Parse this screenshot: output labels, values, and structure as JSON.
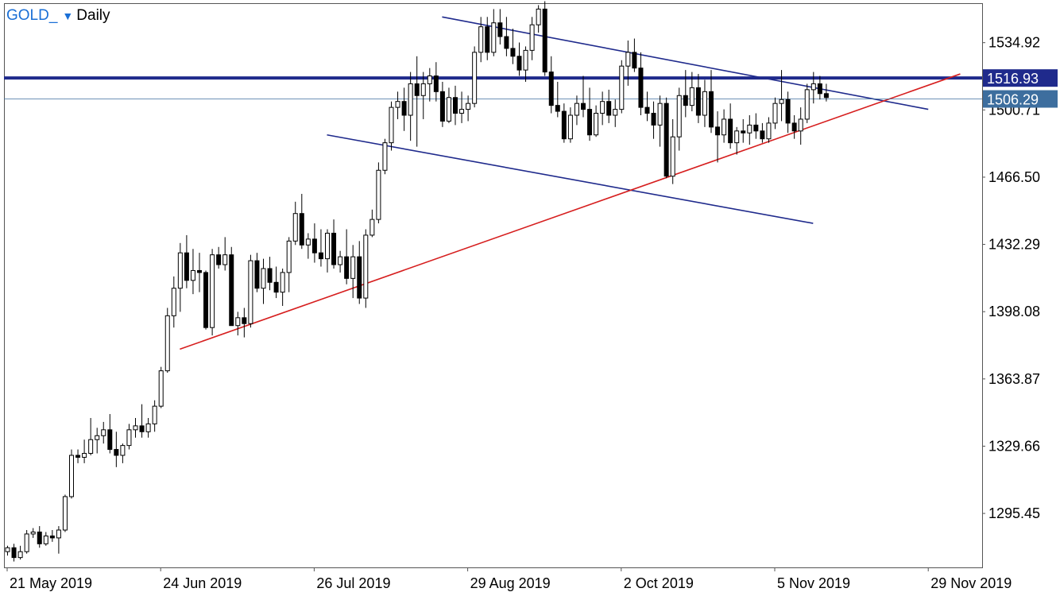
{
  "header": {
    "symbol": "GOLD_",
    "timeframe": "Daily"
  },
  "colors": {
    "accent": "#1a6fd6",
    "resistance": "#1f2a8c",
    "channel": "#1f2a8c",
    "support": "#d61e1e",
    "bid_tag": "#3d6e9e",
    "level_tag": "#1f2a8c"
  },
  "chart_data": {
    "type": "candlestick",
    "title": "",
    "ylim": [
      1268,
      1555
    ],
    "y_ticks": [
      {
        "value": 1534.92,
        "label": "1534.92"
      },
      {
        "value": 1500.71,
        "label": "1500.71"
      },
      {
        "value": 1466.5,
        "label": "1466.50"
      },
      {
        "value": 1432.29,
        "label": "1432.29"
      },
      {
        "value": 1398.08,
        "label": "1398.08"
      },
      {
        "value": 1363.87,
        "label": "1363.87"
      },
      {
        "value": 1329.66,
        "label": "1329.66"
      },
      {
        "value": 1295.45,
        "label": "1295.45"
      }
    ],
    "x_ticks": [
      {
        "index": 0,
        "label": "21 May 2019"
      },
      {
        "index": 24,
        "label": "24 Jun 2019"
      },
      {
        "index": 48,
        "label": "26 Jul 2019"
      },
      {
        "index": 72,
        "label": "29 Aug 2019"
      },
      {
        "index": 96,
        "label": "2 Oct 2019"
      },
      {
        "index": 120,
        "label": "5 Nov 2019"
      },
      {
        "index": 144,
        "label": "29 Nov 2019"
      }
    ],
    "price_tags": [
      {
        "value": 1516.93,
        "label": "1516.93",
        "kind": "level"
      },
      {
        "value": 1506.29,
        "label": "1506.29",
        "kind": "bid"
      }
    ],
    "trendlines": [
      {
        "name": "resistance",
        "x1": -1,
        "y1": 1516.93,
        "x2": 154,
        "y2": 1516.93,
        "width": 4
      },
      {
        "name": "upper-channel",
        "x1": 68,
        "y1": 1548,
        "x2": 144,
        "y2": 1501,
        "width": 1.6
      },
      {
        "name": "lower-channel",
        "x1": 50,
        "y1": 1488,
        "x2": 126,
        "y2": 1443,
        "width": 1.6
      },
      {
        "name": "support",
        "x1": 27,
        "y1": 1379,
        "x2": 149,
        "y2": 1519,
        "width": 1.6
      }
    ],
    "candles": [
      [
        1276,
        1279,
        1274,
        1278
      ],
      [
        1278,
        1280,
        1271,
        1273
      ],
      [
        1273,
        1279,
        1272,
        1276
      ],
      [
        1276,
        1287,
        1275,
        1285
      ],
      [
        1285,
        1288,
        1283,
        1286
      ],
      [
        1286,
        1289,
        1278,
        1280
      ],
      [
        1280,
        1286,
        1279,
        1284
      ],
      [
        1284,
        1287,
        1281,
        1283
      ],
      [
        1283,
        1289,
        1275,
        1287
      ],
      [
        1287,
        1305,
        1286,
        1304
      ],
      [
        1304,
        1328,
        1303,
        1325
      ],
      [
        1325,
        1328,
        1321,
        1324
      ],
      [
        1324,
        1333,
        1321,
        1326
      ],
      [
        1326,
        1344,
        1325,
        1333
      ],
      [
        1333,
        1339,
        1326,
        1335
      ],
      [
        1335,
        1342,
        1331,
        1338
      ],
      [
        1338,
        1346,
        1326,
        1328
      ],
      [
        1328,
        1337,
        1319,
        1325
      ],
      [
        1325,
        1331,
        1321,
        1330
      ],
      [
        1330,
        1341,
        1328,
        1338
      ],
      [
        1338,
        1344,
        1334,
        1340
      ],
      [
        1340,
        1351,
        1334,
        1337
      ],
      [
        1337,
        1344,
        1334,
        1341
      ],
      [
        1341,
        1353,
        1337,
        1350
      ],
      [
        1350,
        1370,
        1349,
        1368
      ],
      [
        1368,
        1400,
        1367,
        1396
      ],
      [
        1396,
        1416,
        1390,
        1410
      ],
      [
        1410,
        1433,
        1398,
        1428
      ],
      [
        1428,
        1437,
        1410,
        1414
      ],
      [
        1414,
        1430,
        1407,
        1419
      ],
      [
        1419,
        1428,
        1408,
        1418
      ],
      [
        1418,
        1419,
        1389,
        1390
      ],
      [
        1390,
        1430,
        1386,
        1427
      ],
      [
        1427,
        1431,
        1420,
        1422
      ],
      [
        1422,
        1436,
        1419,
        1427
      ],
      [
        1427,
        1431,
        1391,
        1391
      ],
      [
        1391,
        1398,
        1386,
        1395
      ],
      [
        1395,
        1400,
        1385,
        1392
      ],
      [
        1392,
        1427,
        1390,
        1424
      ],
      [
        1424,
        1428,
        1408,
        1410
      ],
      [
        1410,
        1425,
        1402,
        1420
      ],
      [
        1420,
        1426,
        1409,
        1413
      ],
      [
        1413,
        1421,
        1405,
        1408
      ],
      [
        1408,
        1420,
        1401,
        1418
      ],
      [
        1418,
        1436,
        1408,
        1434
      ],
      [
        1434,
        1454,
        1432,
        1448
      ],
      [
        1448,
        1458,
        1430,
        1432
      ],
      [
        1432,
        1438,
        1425,
        1435
      ],
      [
        1435,
        1443,
        1423,
        1428
      ],
      [
        1428,
        1440,
        1421,
        1425
      ],
      [
        1425,
        1440,
        1418,
        1438
      ],
      [
        1438,
        1445,
        1420,
        1422
      ],
      [
        1422,
        1429,
        1418,
        1426
      ],
      [
        1426,
        1440,
        1412,
        1415
      ],
      [
        1415,
        1432,
        1405,
        1426
      ],
      [
        1426,
        1434,
        1402,
        1405
      ],
      [
        1405,
        1440,
        1400,
        1437
      ],
      [
        1437,
        1450,
        1436,
        1445
      ],
      [
        1445,
        1474,
        1443,
        1470
      ],
      [
        1470,
        1486,
        1468,
        1484
      ],
      [
        1484,
        1505,
        1480,
        1502
      ],
      [
        1502,
        1510,
        1496,
        1505
      ],
      [
        1505,
        1512,
        1490,
        1498
      ],
      [
        1498,
        1520,
        1485,
        1514
      ],
      [
        1514,
        1528,
        1482,
        1508
      ],
      [
        1508,
        1520,
        1496,
        1514
      ],
      [
        1514,
        1522,
        1505,
        1518
      ],
      [
        1518,
        1525,
        1505,
        1510
      ],
      [
        1510,
        1515,
        1492,
        1495
      ],
      [
        1495,
        1512,
        1494,
        1507
      ],
      [
        1507,
        1513,
        1493,
        1499
      ],
      [
        1499,
        1510,
        1494,
        1501
      ],
      [
        1501,
        1508,
        1495,
        1504
      ],
      [
        1504,
        1533,
        1502,
        1530
      ],
      [
        1530,
        1548,
        1525,
        1543
      ],
      [
        1543,
        1548,
        1526,
        1530
      ],
      [
        1530,
        1552,
        1528,
        1545
      ],
      [
        1545,
        1552,
        1534,
        1538
      ],
      [
        1538,
        1548,
        1528,
        1532
      ],
      [
        1532,
        1542,
        1524,
        1528
      ],
      [
        1528,
        1535,
        1518,
        1521
      ],
      [
        1521,
        1533,
        1515,
        1531
      ],
      [
        1531,
        1548,
        1526,
        1544
      ],
      [
        1544,
        1554,
        1540,
        1552
      ],
      [
        1552,
        1556,
        1518,
        1520
      ],
      [
        1520,
        1528,
        1499,
        1503
      ],
      [
        1503,
        1515,
        1497,
        1500
      ],
      [
        1500,
        1504,
        1484,
        1486
      ],
      [
        1486,
        1502,
        1484,
        1498
      ],
      [
        1498,
        1508,
        1493,
        1504
      ],
      [
        1504,
        1518,
        1497,
        1501
      ],
      [
        1501,
        1512,
        1485,
        1488
      ],
      [
        1488,
        1503,
        1487,
        1499
      ],
      [
        1499,
        1510,
        1493,
        1505
      ],
      [
        1505,
        1511,
        1494,
        1498
      ],
      [
        1498,
        1506,
        1492,
        1501
      ],
      [
        1501,
        1526,
        1499,
        1523
      ],
      [
        1523,
        1536,
        1513,
        1530
      ],
      [
        1530,
        1537,
        1520,
        1522
      ],
      [
        1522,
        1530,
        1498,
        1502
      ],
      [
        1502,
        1510,
        1495,
        1499
      ],
      [
        1499,
        1505,
        1486,
        1493
      ],
      [
        1493,
        1508,
        1482,
        1504
      ],
      [
        1504,
        1507,
        1466,
        1467
      ],
      [
        1467,
        1496,
        1463,
        1487
      ],
      [
        1487,
        1512,
        1480,
        1508
      ],
      [
        1508,
        1521,
        1497,
        1503
      ],
      [
        1503,
        1520,
        1500,
        1512
      ],
      [
        1512,
        1519,
        1494,
        1498
      ],
      [
        1498,
        1516,
        1492,
        1510
      ],
      [
        1510,
        1521,
        1489,
        1492
      ],
      [
        1492,
        1500,
        1474,
        1488
      ],
      [
        1488,
        1501,
        1484,
        1496
      ],
      [
        1496,
        1504,
        1481,
        1484
      ],
      [
        1484,
        1492,
        1478,
        1490
      ],
      [
        1490,
        1496,
        1484,
        1489
      ],
      [
        1489,
        1498,
        1483,
        1493
      ],
      [
        1493,
        1499,
        1486,
        1490
      ],
      [
        1490,
        1494,
        1484,
        1486
      ],
      [
        1486,
        1497,
        1484,
        1494
      ],
      [
        1494,
        1507,
        1491,
        1504
      ],
      [
        1504,
        1521,
        1495,
        1506
      ],
      [
        1506,
        1510,
        1489,
        1494
      ],
      [
        1494,
        1498,
        1486,
        1490
      ],
      [
        1490,
        1502,
        1483,
        1496
      ],
      [
        1496,
        1514,
        1494,
        1511
      ],
      [
        1511,
        1520,
        1504,
        1514
      ],
      [
        1514,
        1518,
        1506,
        1509
      ],
      [
        1509,
        1514,
        1505,
        1507
      ]
    ]
  }
}
